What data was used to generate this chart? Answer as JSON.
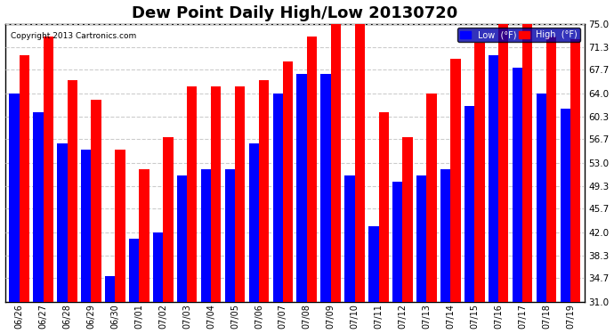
{
  "title": "Dew Point Daily High/Low 20130720",
  "copyright": "Copyright 2013 Cartronics.com",
  "dates": [
    "06/26",
    "06/27",
    "06/28",
    "06/29",
    "06/30",
    "07/01",
    "07/02",
    "07/03",
    "07/04",
    "07/05",
    "07/06",
    "07/07",
    "07/08",
    "07/09",
    "07/10",
    "07/11",
    "07/12",
    "07/13",
    "07/14",
    "07/15",
    "07/16",
    "07/17",
    "07/18",
    "07/19"
  ],
  "low_values": [
    64.0,
    61.0,
    56.0,
    55.0,
    35.0,
    41.0,
    42.0,
    51.0,
    52.0,
    52.0,
    56.0,
    64.0,
    67.0,
    67.0,
    51.0,
    43.0,
    50.0,
    51.0,
    52.0,
    62.0,
    70.0,
    68.0,
    64.0,
    61.5
  ],
  "high_values": [
    70.0,
    73.0,
    66.0,
    63.0,
    55.0,
    52.0,
    57.0,
    65.0,
    65.0,
    65.0,
    66.0,
    69.0,
    73.0,
    75.0,
    75.0,
    61.0,
    57.0,
    64.0,
    69.5,
    72.0,
    75.0,
    75.0,
    73.0,
    72.5
  ],
  "low_color": "#0000ff",
  "high_color": "#ff0000",
  "bg_color": "#ffffff",
  "plot_bg_color": "#ffffff",
  "grid_color": "#cccccc",
  "ylim": [
    31.0,
    75.0
  ],
  "yticks": [
    31.0,
    34.7,
    38.3,
    42.0,
    45.7,
    49.3,
    53.0,
    56.7,
    60.3,
    64.0,
    67.7,
    71.3,
    75.0
  ],
  "title_fontsize": 13,
  "legend_low_label": "Low  (°F)",
  "legend_high_label": "High  (°F)",
  "bar_width": 0.42
}
